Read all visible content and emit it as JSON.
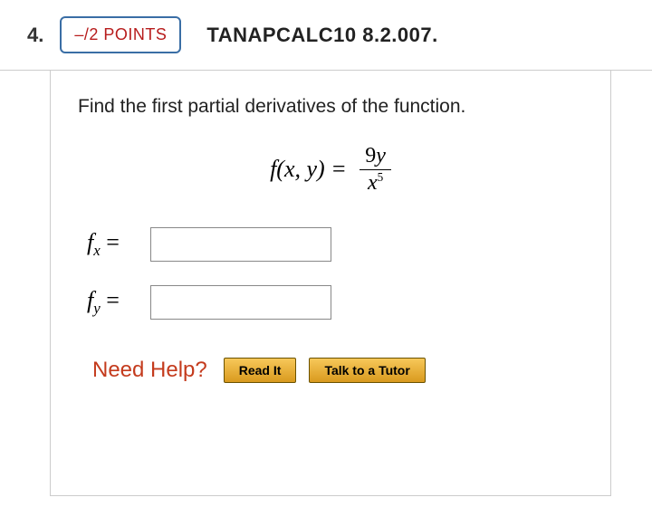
{
  "header": {
    "question_number": "4.",
    "points_label": "–/2 POINTS",
    "question_ref": "TANAPCALC10 8.2.007."
  },
  "prompt": "Find the first partial derivatives of the function.",
  "formula": {
    "lhs": "f(x, y) =",
    "numerator_coeff": "9",
    "numerator_var": "y",
    "denominator_base": "x",
    "denominator_exp": "5"
  },
  "rows": {
    "fx": {
      "var": "f",
      "sub": "x",
      "eq": " ="
    },
    "fy": {
      "var": "f",
      "sub": "y",
      "eq": " ="
    }
  },
  "help": {
    "label": "Need Help?",
    "read_label": "Read It",
    "tutor_label": "Talk to a Tutor"
  },
  "colors": {
    "points_border": "#3a6ea5",
    "points_text": "#b71c1c",
    "help_text": "#c43b1d",
    "button_top": "#f7c85a",
    "button_bottom": "#d99a1e"
  }
}
